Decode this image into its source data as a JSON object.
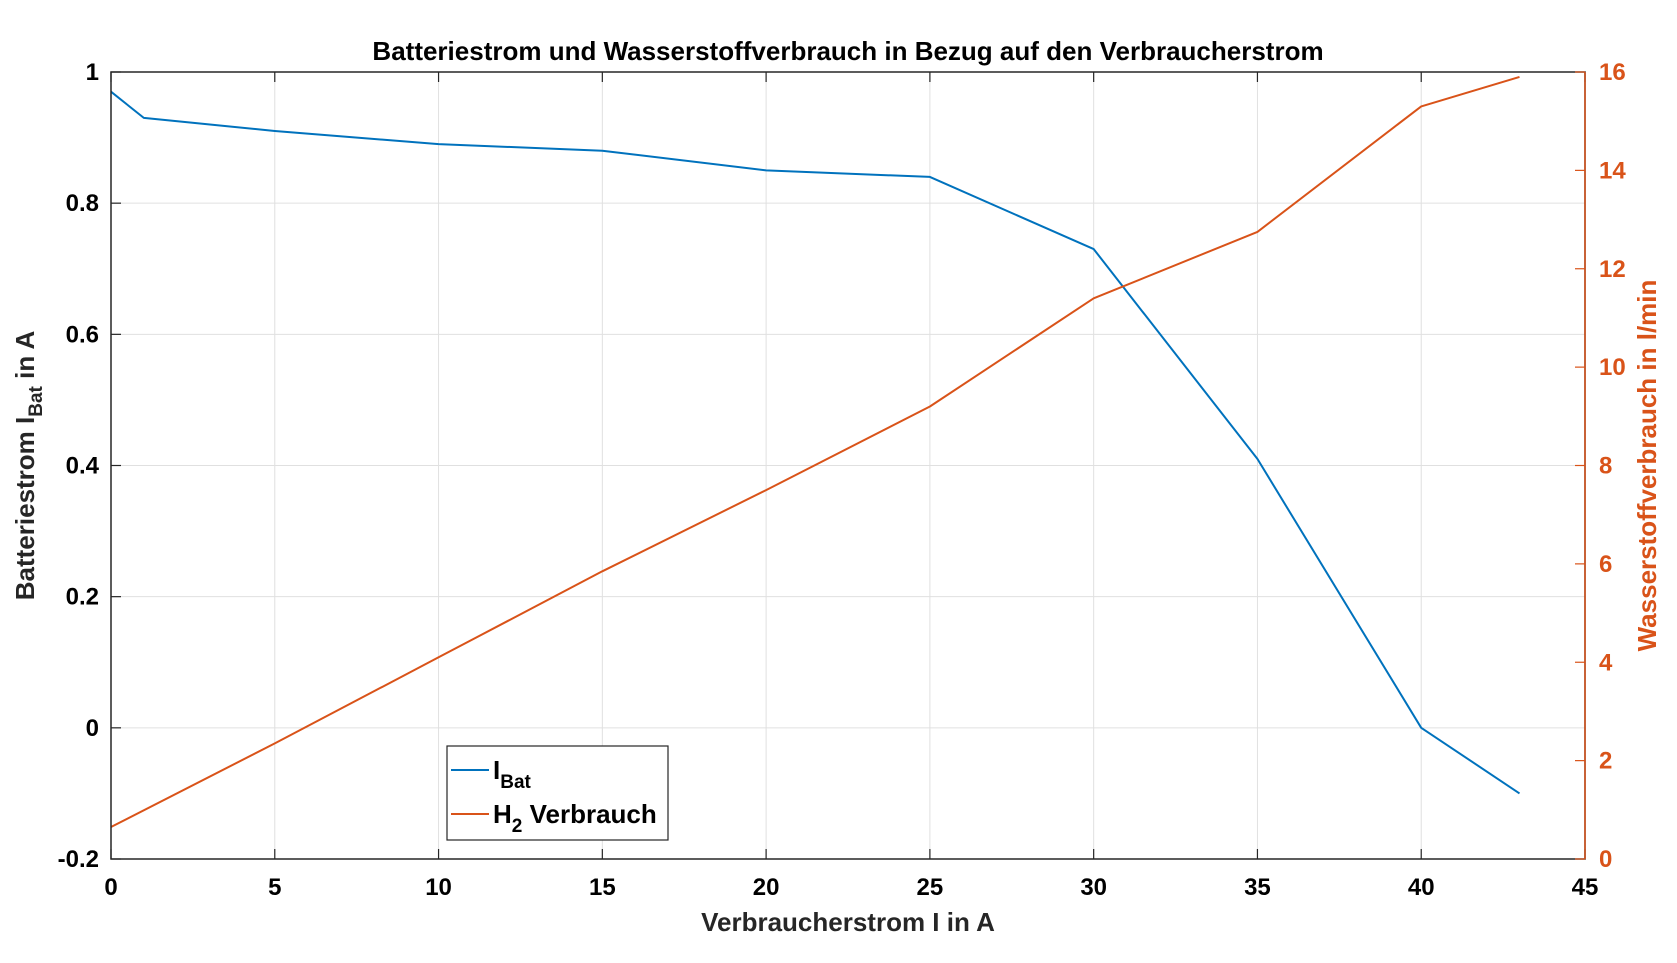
{
  "chart_data": {
    "type": "line",
    "title": "Batteriestrom und Wasserstoffverbrauch in Bezug auf den Verbraucherstrom",
    "xlabel": "Verbraucherstrom I in A",
    "ylabel_left": {
      "main": "Batteriestrom I",
      "sub": "Bat",
      "suffix": " in A"
    },
    "ylabel_right": "Wasserstoffverbrauch in l/min",
    "xlim": [
      0,
      45
    ],
    "ylim_left": [
      -0.2,
      1
    ],
    "ylim_right": [
      0,
      16
    ],
    "x_ticks": [
      "0",
      "5",
      "10",
      "15",
      "20",
      "25",
      "30",
      "35",
      "40",
      "45"
    ],
    "y_left_ticks": [
      "-0.2",
      "0",
      "0.2",
      "0.4",
      "0.6",
      "0.8",
      "1"
    ],
    "y_right_ticks": [
      "0",
      "2",
      "4",
      "6",
      "8",
      "10",
      "12",
      "14",
      "16"
    ],
    "grid": true,
    "legend_placement": "bottom-center-left",
    "series": [
      {
        "name": "I",
        "name_sub": "Bat",
        "axis": "left",
        "color": "#0072BD",
        "x": [
          0,
          1,
          5,
          10,
          15,
          20,
          25,
          30,
          35,
          40,
          43
        ],
        "y": [
          0.97,
          0.93,
          0.91,
          0.89,
          0.88,
          0.85,
          0.84,
          0.73,
          0.41,
          0.0,
          -0.1
        ]
      },
      {
        "name": "H",
        "name_sub": "2",
        "name_suffix": " Verbrauch",
        "axis": "right",
        "color": "#D95319",
        "x": [
          0,
          5,
          10,
          15,
          20,
          25,
          30,
          35,
          40,
          43
        ],
        "y": [
          0.65,
          2.35,
          4.1,
          5.85,
          7.5,
          9.2,
          11.4,
          12.75,
          15.3,
          15.9
        ]
      }
    ]
  }
}
